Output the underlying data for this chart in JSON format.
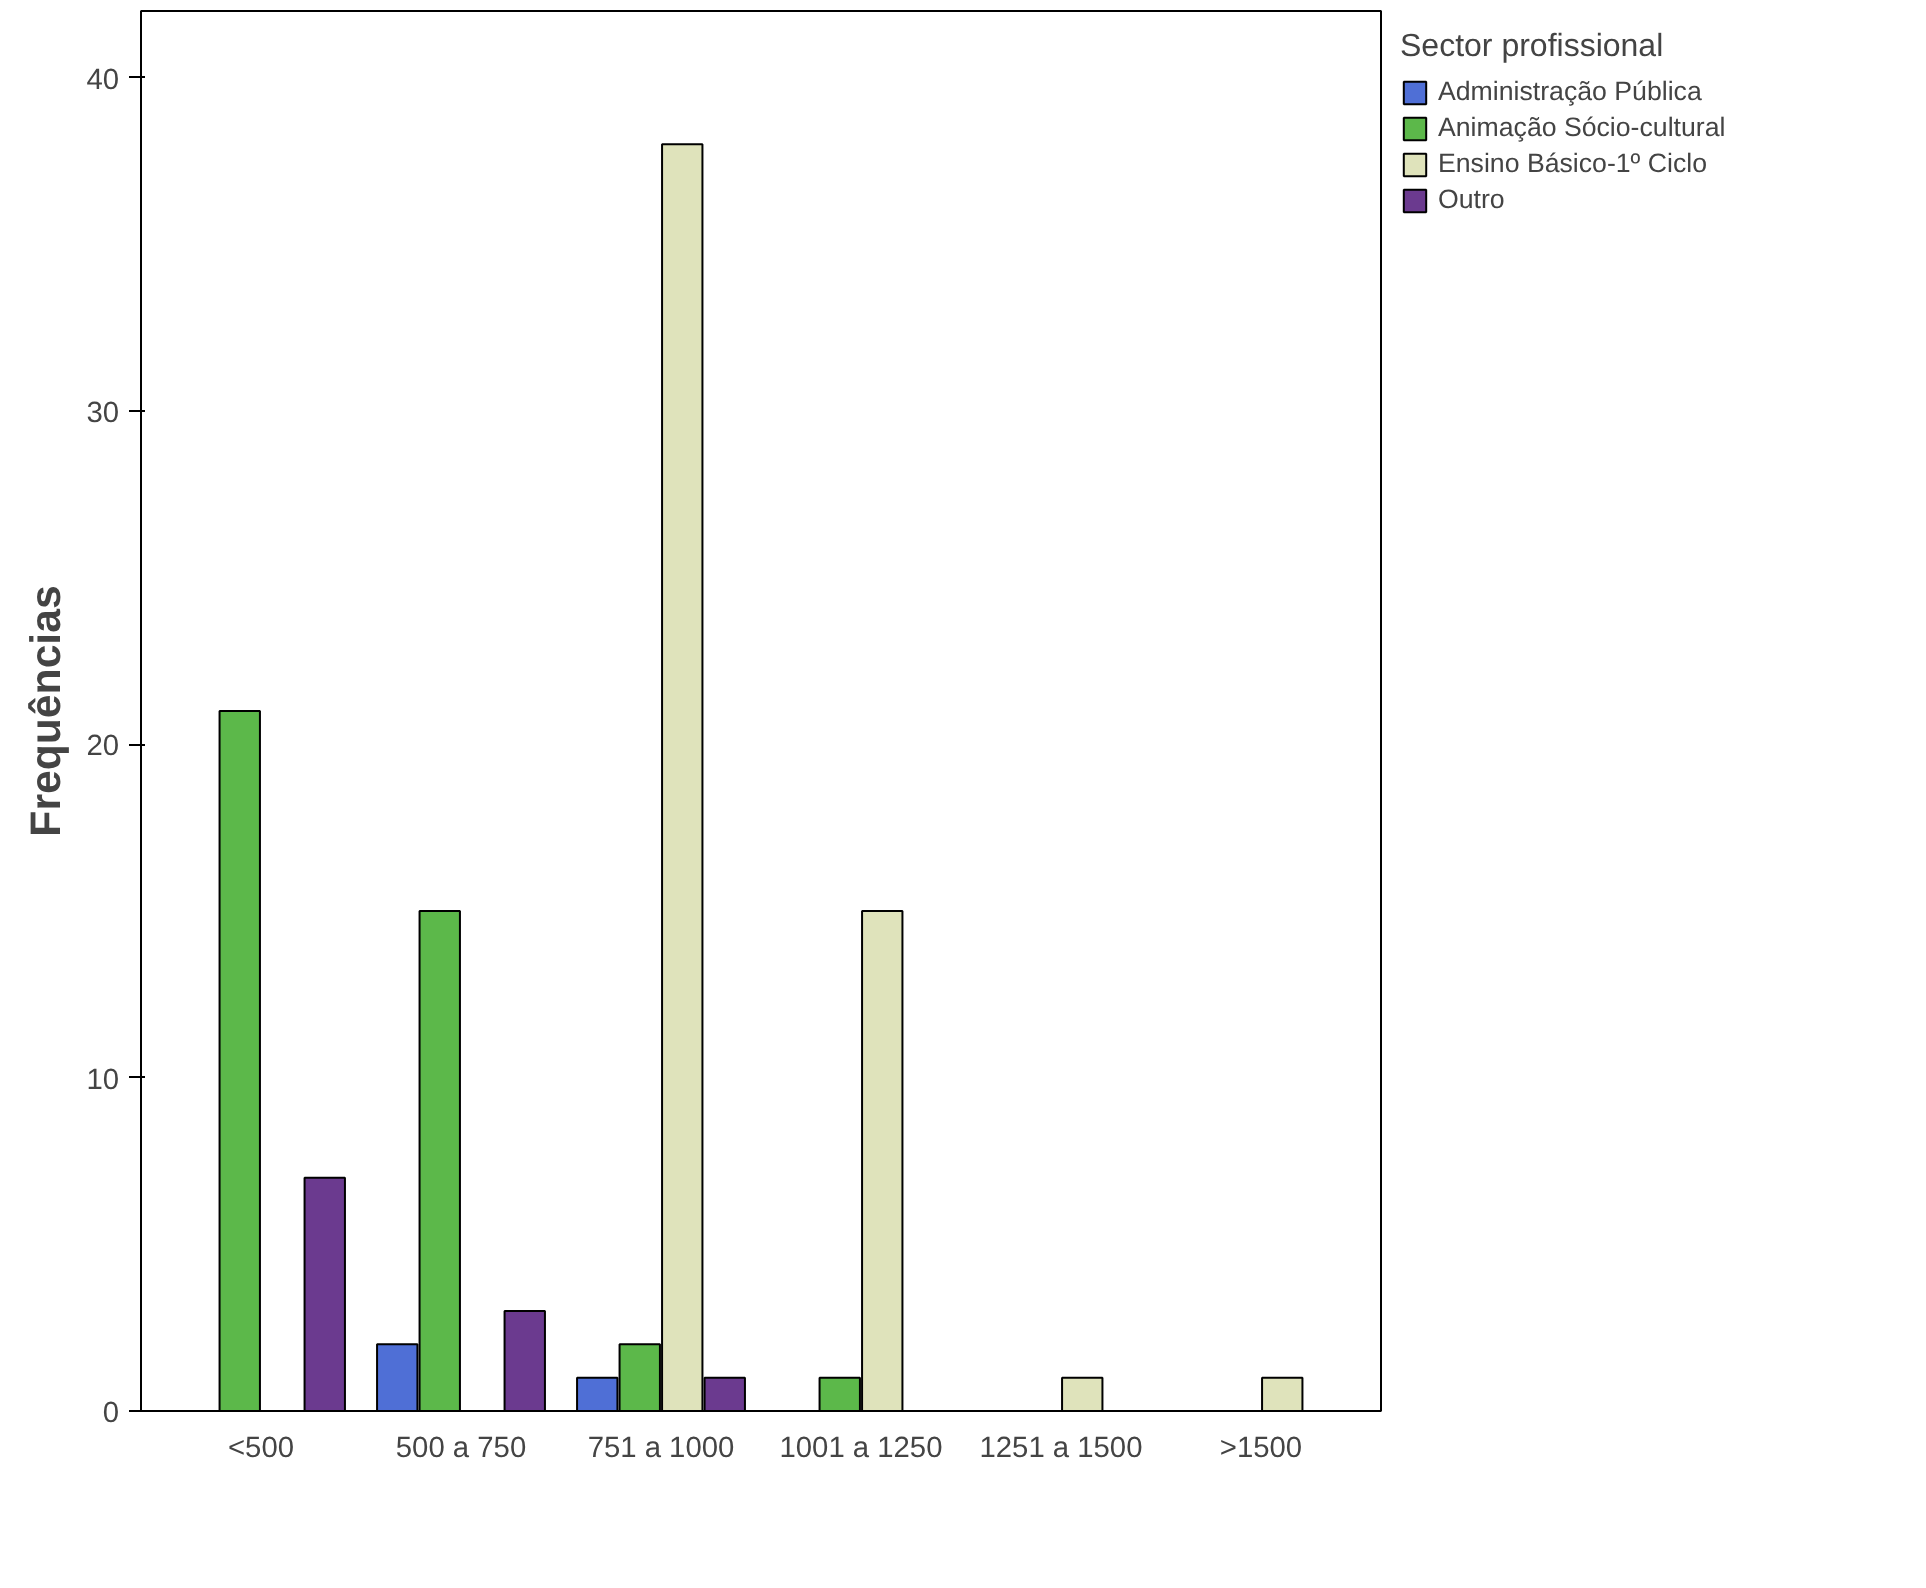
{
  "chart_data": {
    "type": "bar",
    "ylabel": "Frequências",
    "legend_title": "Sector profissional",
    "categories": [
      "<500",
      "500 a 750",
      "751 a 1000",
      "1001 a 1250",
      "1251 a 1500",
      ">1500"
    ],
    "series": [
      {
        "name": "Administração Pública",
        "color": "#4f6fd6",
        "values": [
          null,
          2,
          1,
          null,
          null,
          null
        ]
      },
      {
        "name": "Animação Sócio-cultural",
        "color": "#5cb84a",
        "values": [
          21,
          15,
          2,
          1,
          null,
          null
        ]
      },
      {
        "name": "Ensino Básico-1º Ciclo",
        "color": "#dfe3bb",
        "values": [
          null,
          null,
          38,
          15,
          1,
          1
        ]
      },
      {
        "name": "Outro",
        "color": "#6b3a8f",
        "values": [
          7,
          3,
          1,
          null,
          null,
          null
        ]
      }
    ],
    "ylim": [
      0,
      42
    ],
    "yticks": [
      0,
      10,
      20,
      30,
      40
    ],
    "grid": false,
    "legend": "right"
  }
}
